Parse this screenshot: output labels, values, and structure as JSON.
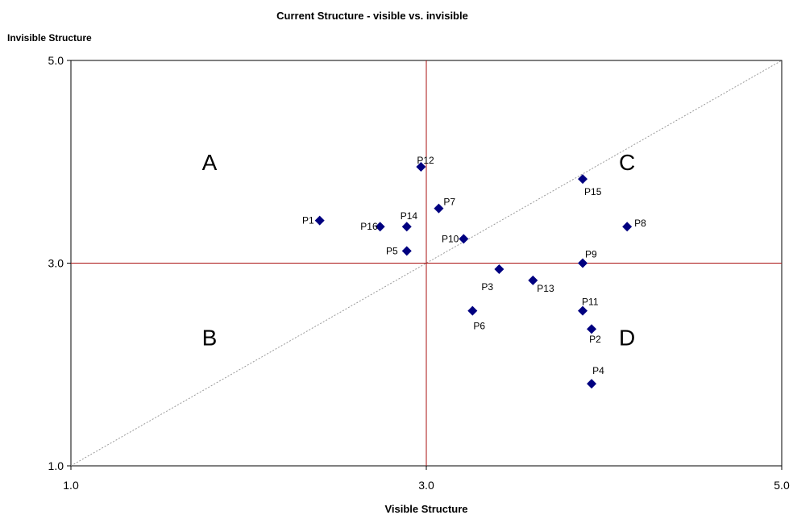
{
  "chart_data": {
    "type": "scatter",
    "title": "Current Structure - visible vs. invisible",
    "xlabel": "Visible Structure",
    "ylabel": "Invisible Structure",
    "xlim": [
      1.0,
      5.0
    ],
    "ylim": [
      1.0,
      5.0
    ],
    "x_ticks": [
      "1.0",
      "3.0",
      "5.0"
    ],
    "y_ticks": [
      "1.0",
      "3.0",
      "5.0"
    ],
    "grid": false,
    "reference_lines": {
      "vertical_x": 3.0,
      "horizontal_y": 3.0,
      "diagonal": "y = x",
      "crosshair_color": "#aa1111",
      "diagonal_color": "#999999"
    },
    "quadrant_labels": [
      {
        "label": "A",
        "x": 1.78,
        "y": 4.0
      },
      {
        "label": "B",
        "x": 1.78,
        "y": 2.27
      },
      {
        "label": "C",
        "x": 4.13,
        "y": 4.0
      },
      {
        "label": "D",
        "x": 4.13,
        "y": 2.27
      }
    ],
    "marker_color": "#000080",
    "points": [
      {
        "label": "P1",
        "x": 2.4,
        "y": 3.42
      },
      {
        "label": "P2",
        "x": 3.93,
        "y": 2.35
      },
      {
        "label": "P3",
        "x": 3.41,
        "y": 2.94
      },
      {
        "label": "P4",
        "x": 3.93,
        "y": 1.81
      },
      {
        "label": "P5",
        "x": 2.89,
        "y": 3.12
      },
      {
        "label": "P6",
        "x": 3.26,
        "y": 2.53
      },
      {
        "label": "P7",
        "x": 3.07,
        "y": 3.54
      },
      {
        "label": "P8",
        "x": 4.13,
        "y": 3.36
      },
      {
        "label": "P9",
        "x": 3.88,
        "y": 3.0
      },
      {
        "label": "P10",
        "x": 3.21,
        "y": 3.24
      },
      {
        "label": "P11",
        "x": 3.88,
        "y": 2.53
      },
      {
        "label": "P12",
        "x": 2.97,
        "y": 3.95
      },
      {
        "label": "P13",
        "x": 3.6,
        "y": 2.83
      },
      {
        "label": "P14",
        "x": 2.89,
        "y": 3.36
      },
      {
        "label": "P15",
        "x": 3.88,
        "y": 3.83
      },
      {
        "label": "P16",
        "x": 2.74,
        "y": 3.36
      }
    ]
  }
}
